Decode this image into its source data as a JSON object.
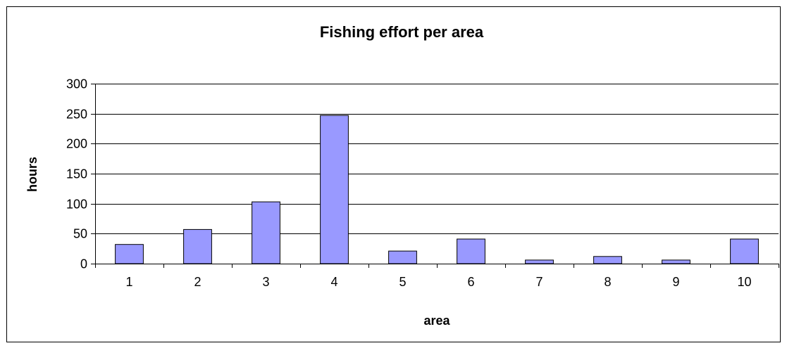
{
  "chart_data": {
    "type": "bar",
    "title": "Fishing effort per area",
    "xlabel": "area",
    "ylabel": "hours",
    "categories": [
      "1",
      "2",
      "3",
      "4",
      "5",
      "6",
      "7",
      "8",
      "9",
      "10"
    ],
    "values": [
      32,
      57,
      103,
      247,
      21,
      41,
      6,
      12,
      6,
      41
    ],
    "ylim": [
      0,
      300
    ],
    "yticks": [
      0,
      50,
      100,
      150,
      200,
      250,
      300
    ],
    "grid": true,
    "legend": "none",
    "colors": {
      "bar_fill": "#9999ff",
      "bar_stroke": "#000000",
      "frame": "#000000"
    }
  }
}
